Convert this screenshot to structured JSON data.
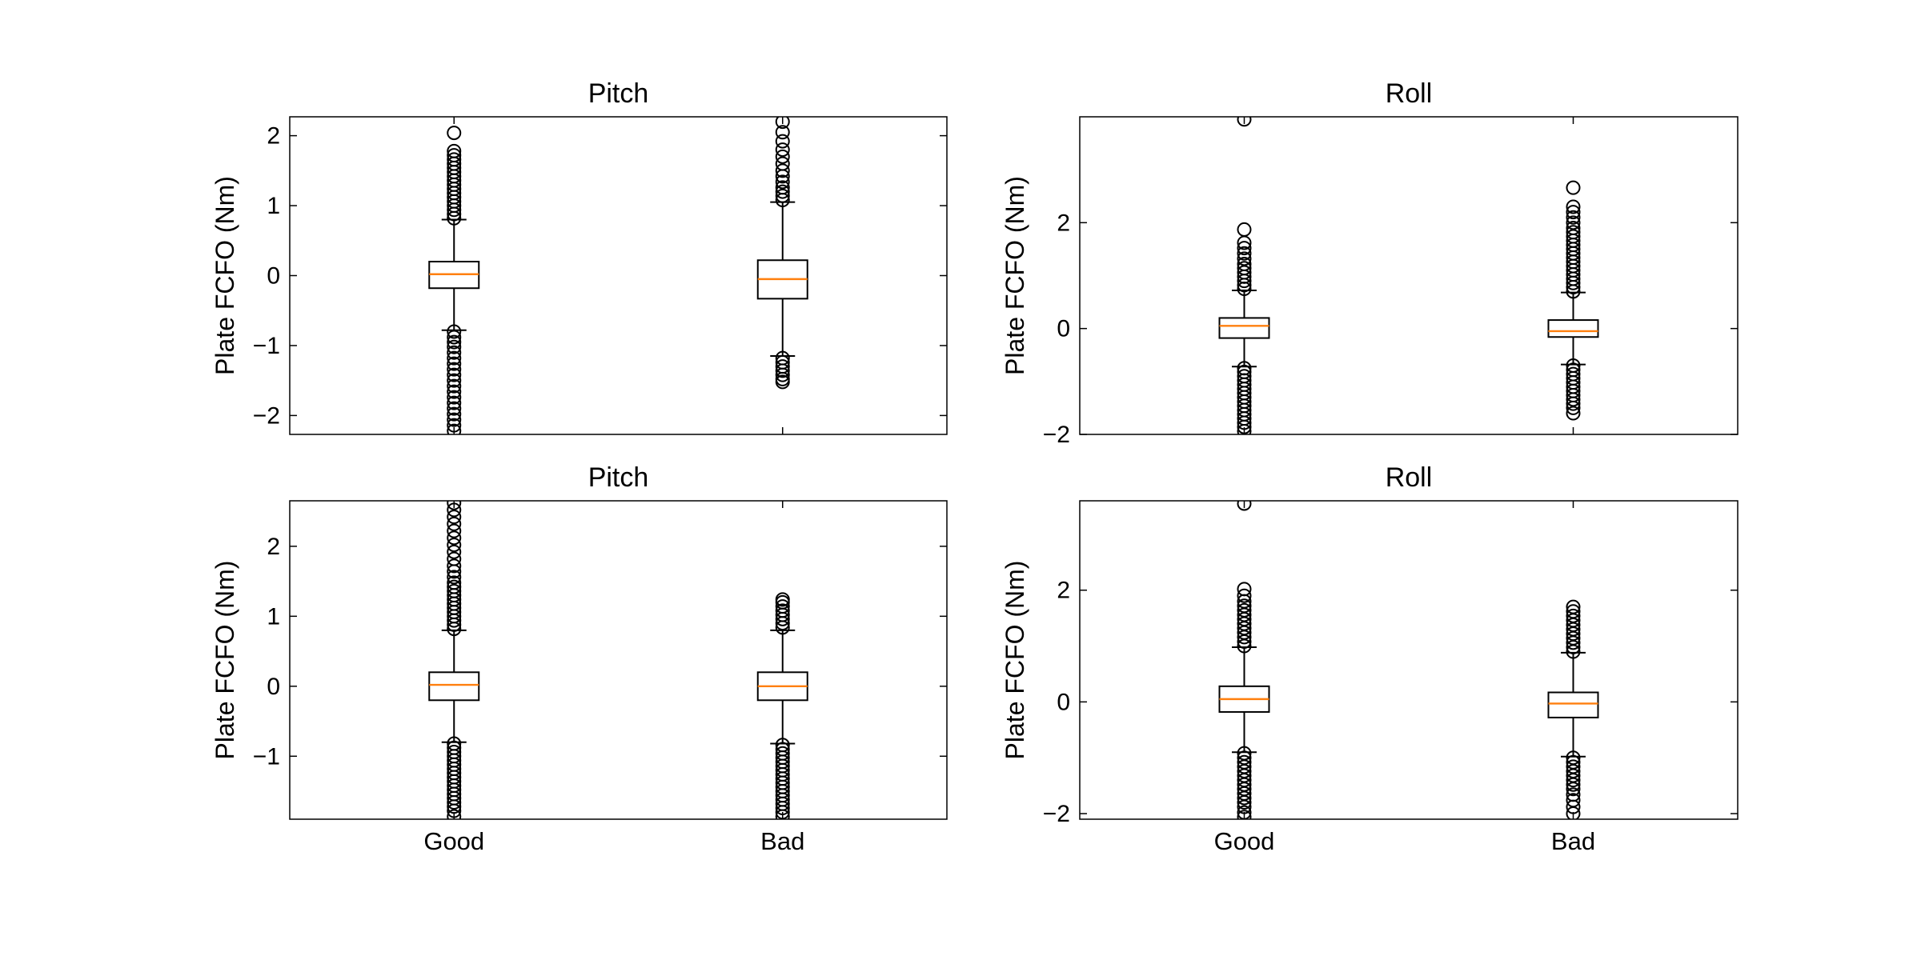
{
  "chart_data": [
    {
      "type": "box",
      "title": "Pitch",
      "ylabel": "Plate FCFO (Nm)",
      "xlabel": "",
      "ylim": [
        -2.27,
        2.27
      ],
      "yticks": [
        -2,
        -1,
        0,
        1,
        2
      ],
      "categories": [
        "Good",
        "Bad"
      ],
      "show_category_labels": false,
      "colors": {
        "median": "#ff7f0e",
        "box": "#000000"
      },
      "boxes": [
        {
          "category": "Good",
          "q1": -0.18,
          "median": 0.02,
          "q3": 0.2,
          "whisker_low": -0.78,
          "whisker_high": 0.8,
          "outliers_low": [
            -0.8,
            -0.88,
            -0.95,
            -1.02,
            -1.1,
            -1.18,
            -1.26,
            -1.34,
            -1.42,
            -1.5,
            -1.58,
            -1.66,
            -1.74,
            -1.82,
            -1.9,
            -1.98,
            -2.06,
            -2.14,
            -2.22
          ],
          "outliers_high": [
            0.82,
            0.88,
            0.94,
            1.0,
            1.06,
            1.12,
            1.18,
            1.24,
            1.3,
            1.36,
            1.42,
            1.48,
            1.54,
            1.6,
            1.66,
            1.72,
            1.78,
            2.04
          ]
        },
        {
          "category": "Bad",
          "q1": -0.33,
          "median": -0.05,
          "q3": 0.22,
          "whisker_low": -1.15,
          "whisker_high": 1.05,
          "outliers_low": [
            -1.18,
            -1.24,
            -1.3,
            -1.36,
            -1.42,
            -1.48,
            -1.52
          ],
          "outliers_high": [
            1.08,
            1.14,
            1.2,
            1.26,
            1.34,
            1.42,
            1.5,
            1.6,
            1.7,
            1.8,
            1.92,
            2.05,
            2.2
          ]
        }
      ]
    },
    {
      "type": "box",
      "title": "Roll",
      "ylabel": "Plate FCFO (Nm)",
      "xlabel": "",
      "ylim": [
        -2.0,
        4.0
      ],
      "yticks": [
        -2,
        0,
        2
      ],
      "categories": [
        "Good",
        "Bad"
      ],
      "show_category_labels": false,
      "colors": {
        "median": "#ff7f0e",
        "box": "#000000"
      },
      "boxes": [
        {
          "category": "Good",
          "q1": -0.18,
          "median": 0.05,
          "q3": 0.2,
          "whisker_low": -0.72,
          "whisker_high": 0.72,
          "outliers_low": [
            -0.75,
            -0.82,
            -0.9,
            -0.98,
            -1.06,
            -1.14,
            -1.22,
            -1.3,
            -1.38,
            -1.46,
            -1.54,
            -1.62,
            -1.7,
            -1.78,
            -1.86,
            -1.94
          ],
          "outliers_high": [
            0.75,
            0.82,
            0.9,
            0.98,
            1.06,
            1.14,
            1.22,
            1.32,
            1.42,
            1.52,
            1.62,
            1.87,
            3.95
          ]
        },
        {
          "category": "Bad",
          "q1": -0.16,
          "median": -0.05,
          "q3": 0.16,
          "whisker_low": -0.68,
          "whisker_high": 0.68,
          "outliers_low": [
            -0.7,
            -0.78,
            -0.86,
            -0.94,
            -1.02,
            -1.1,
            -1.18,
            -1.26,
            -1.34,
            -1.42,
            -1.5,
            -1.6
          ],
          "outliers_high": [
            0.7,
            0.78,
            0.86,
            0.94,
            1.02,
            1.1,
            1.18,
            1.26,
            1.34,
            1.42,
            1.5,
            1.58,
            1.66,
            1.74,
            1.82,
            1.9,
            2.0,
            2.1,
            2.2,
            2.3,
            2.66
          ]
        }
      ]
    },
    {
      "type": "box",
      "title": "Pitch",
      "ylabel": "Plate FCFO (Nm)",
      "xlabel": "",
      "ylim": [
        -1.9,
        2.65
      ],
      "yticks": [
        -1,
        0,
        1,
        2
      ],
      "categories": [
        "Good",
        "Bad"
      ],
      "show_category_labels": true,
      "colors": {
        "median": "#ff7f0e",
        "box": "#000000"
      },
      "boxes": [
        {
          "category": "Good",
          "q1": -0.2,
          "median": 0.02,
          "q3": 0.2,
          "whisker_low": -0.8,
          "whisker_high": 0.8,
          "outliers_low": [
            -0.82,
            -0.88,
            -0.94,
            -1.0,
            -1.06,
            -1.12,
            -1.18,
            -1.24,
            -1.3,
            -1.36,
            -1.42,
            -1.48,
            -1.54,
            -1.6,
            -1.66,
            -1.72,
            -1.78,
            -1.86
          ],
          "outliers_high": [
            0.82,
            0.88,
            0.94,
            1.0,
            1.06,
            1.12,
            1.18,
            1.24,
            1.3,
            1.36,
            1.42,
            1.48,
            1.56,
            1.64,
            1.72,
            1.82,
            1.92,
            2.02,
            2.12,
            2.22,
            2.32,
            2.42,
            2.52,
            2.62
          ]
        },
        {
          "category": "Bad",
          "q1": -0.2,
          "median": 0.0,
          "q3": 0.2,
          "whisker_low": -0.82,
          "whisker_high": 0.8,
          "outliers_low": [
            -0.84,
            -0.9,
            -0.96,
            -1.02,
            -1.08,
            -1.14,
            -1.2,
            -1.26,
            -1.32,
            -1.38,
            -1.44,
            -1.5,
            -1.56,
            -1.62,
            -1.68,
            -1.74,
            -1.8,
            -1.86
          ],
          "outliers_high": [
            0.84,
            0.9,
            0.96,
            1.02,
            1.08,
            1.14,
            1.2,
            1.24
          ]
        }
      ]
    },
    {
      "type": "box",
      "title": "Roll",
      "ylabel": "Plate FCFO (Nm)",
      "xlabel": "",
      "ylim": [
        -2.1,
        3.6
      ],
      "yticks": [
        -2,
        0,
        2
      ],
      "categories": [
        "Good",
        "Bad"
      ],
      "show_category_labels": true,
      "colors": {
        "median": "#ff7f0e",
        "box": "#000000"
      },
      "boxes": [
        {
          "category": "Good",
          "q1": -0.18,
          "median": 0.05,
          "q3": 0.28,
          "whisker_low": -0.9,
          "whisker_high": 0.98,
          "outliers_low": [
            -0.92,
            -1.0,
            -1.08,
            -1.16,
            -1.24,
            -1.32,
            -1.4,
            -1.48,
            -1.56,
            -1.64,
            -1.72,
            -1.8,
            -1.88,
            -1.98,
            -2.06
          ],
          "outliers_high": [
            1.0,
            1.08,
            1.16,
            1.24,
            1.32,
            1.4,
            1.48,
            1.56,
            1.64,
            1.72,
            1.8,
            1.9,
            2.02,
            3.55
          ]
        },
        {
          "category": "Bad",
          "q1": -0.28,
          "median": -0.03,
          "q3": 0.17,
          "whisker_low": -0.98,
          "whisker_high": 0.88,
          "outliers_low": [
            -1.0,
            -1.08,
            -1.16,
            -1.24,
            -1.32,
            -1.4,
            -1.48,
            -1.56,
            -1.66,
            -1.76,
            -1.88,
            -2.0
          ],
          "outliers_high": [
            0.9,
            0.98,
            1.06,
            1.14,
            1.22,
            1.3,
            1.38,
            1.46,
            1.54,
            1.62,
            1.7
          ]
        }
      ]
    }
  ]
}
